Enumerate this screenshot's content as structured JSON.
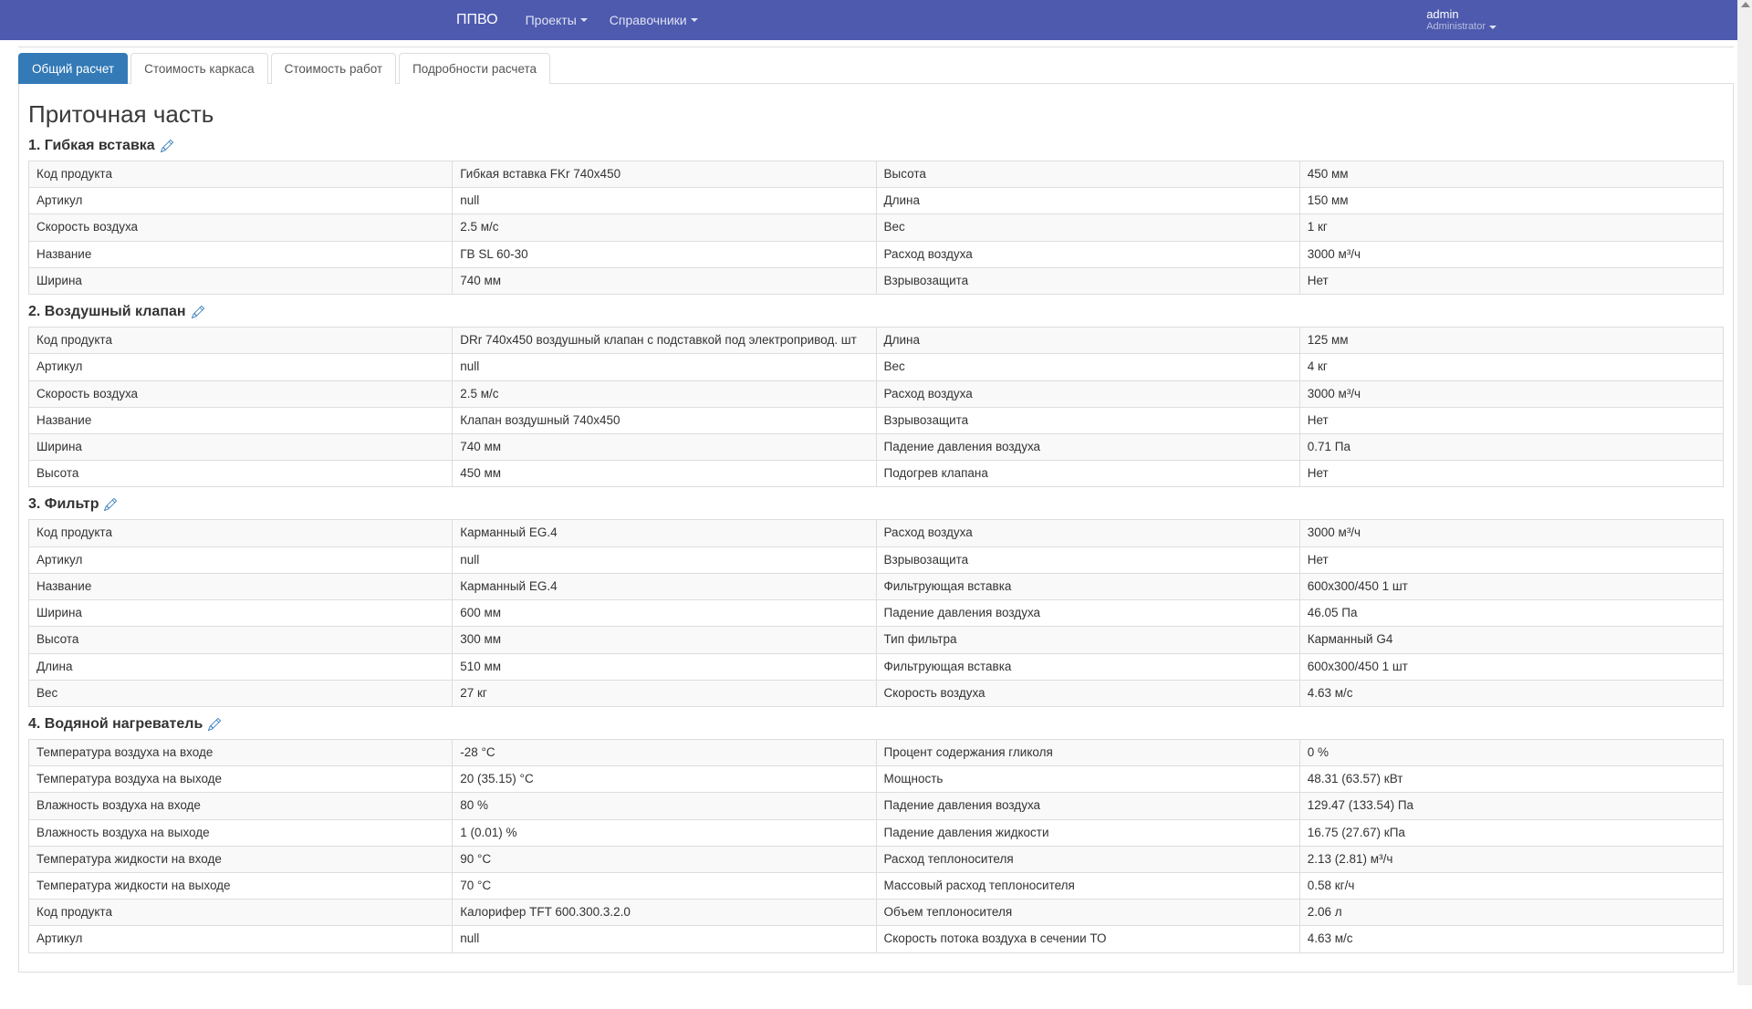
{
  "nav": {
    "brand": "ППВО",
    "items": [
      "Проекты",
      "Справочники"
    ],
    "user": "admin",
    "role": "Administrator"
  },
  "tabs": [
    "Общий расчет",
    "Стоимость каркаса",
    "Стоимость работ",
    "Подробности расчета"
  ],
  "active_tab": 0,
  "page_title": "Приточная часть",
  "sections": [
    {
      "title": "1. Гибкая вставка",
      "rows": [
        [
          "Код продукта",
          "Гибкая вставка FKr 740x450",
          "Высота",
          "450 мм"
        ],
        [
          "Артикул",
          "null",
          "Длина",
          "150 мм"
        ],
        [
          "Скорость воздуха",
          "2.5 м/с",
          "Вес",
          "1 кг"
        ],
        [
          "Название",
          "ГВ SL 60-30",
          "Расход воздуха",
          "3000 м³/ч"
        ],
        [
          "Ширина",
          "740 мм",
          "Взрывозащита",
          "Нет"
        ]
      ]
    },
    {
      "title": "2. Воздушный клапан",
      "rows": [
        [
          "Код продукта",
          "DRr 740x450 воздушный клапан с подставкой под электропривод. шт",
          "Длина",
          "125 мм"
        ],
        [
          "Артикул",
          "null",
          "Вес",
          "4 кг"
        ],
        [
          "Скорость воздуха",
          "2.5 м/с",
          "Расход воздуха",
          "3000 м³/ч"
        ],
        [
          "Название",
          "Клапан воздушный 740x450",
          "Взрывозащита",
          "Нет"
        ],
        [
          "Ширина",
          "740 мм",
          "Падение давления воздуха",
          "0.71 Па"
        ],
        [
          "Высота",
          "450 мм",
          "Подогрев клапана",
          "Нет"
        ]
      ]
    },
    {
      "title": "3. Фильтр",
      "rows": [
        [
          "Код продукта",
          "Карманный EG.4",
          "Расход воздуха",
          "3000 м³/ч"
        ],
        [
          "Артикул",
          "null",
          "Взрывозащита",
          "Нет"
        ],
        [
          "Название",
          "Карманный EG.4",
          "Фильтрующая вставка",
          "600x300/450 1 шт"
        ],
        [
          "Ширина",
          "600 мм",
          "Падение давления воздуха",
          "46.05 Па"
        ],
        [
          "Высота",
          "300 мм",
          "Тип фильтра",
          "Карманный G4"
        ],
        [
          "Длина",
          "510 мм",
          "Фильтрующая вставка",
          "600x300/450 1 шт"
        ],
        [
          "Вес",
          "27 кг",
          "Скорость воздуха",
          "4.63 м/с"
        ]
      ]
    },
    {
      "title": "4. Водяной нагреватель",
      "rows": [
        [
          "Температура воздуха на входе",
          "-28 °C",
          "Процент содержания гликоля",
          "0 %"
        ],
        [
          "Температура воздуха на выходе",
          "20 (35.15) °C",
          "Мощность",
          "48.31 (63.57) кВт"
        ],
        [
          "Влажность воздуха на входе",
          "80 %",
          "Падение давления воздуха",
          "129.47 (133.54) Па"
        ],
        [
          "Влажность воздуха на выходе",
          "1 (0.01) %",
          "Падение давления жидкости",
          "16.75 (27.67) кПа"
        ],
        [
          "Температура жидкости на входе",
          "90 °C",
          "Расход теплоносителя",
          "2.13 (2.81) м³/ч"
        ],
        [
          "Температура жидкости на выходе",
          "70 °C",
          "Массовый расход теплоносителя",
          "0.58 кг/ч"
        ],
        [
          "Код продукта",
          "Калорифер TFT 600.300.3.2.0",
          "Объем теплоносителя",
          "2.06 л"
        ],
        [
          "Артикул",
          "null",
          "Скорость потока воздуха в сечении ТО",
          "4.63 м/с"
        ]
      ]
    }
  ],
  "colors": {
    "navbar": "#4d5aae",
    "tab_active": "#337ab7",
    "accent": "#337ab7",
    "border": "#dddddd",
    "row_stripe": "#f9f9f9"
  }
}
